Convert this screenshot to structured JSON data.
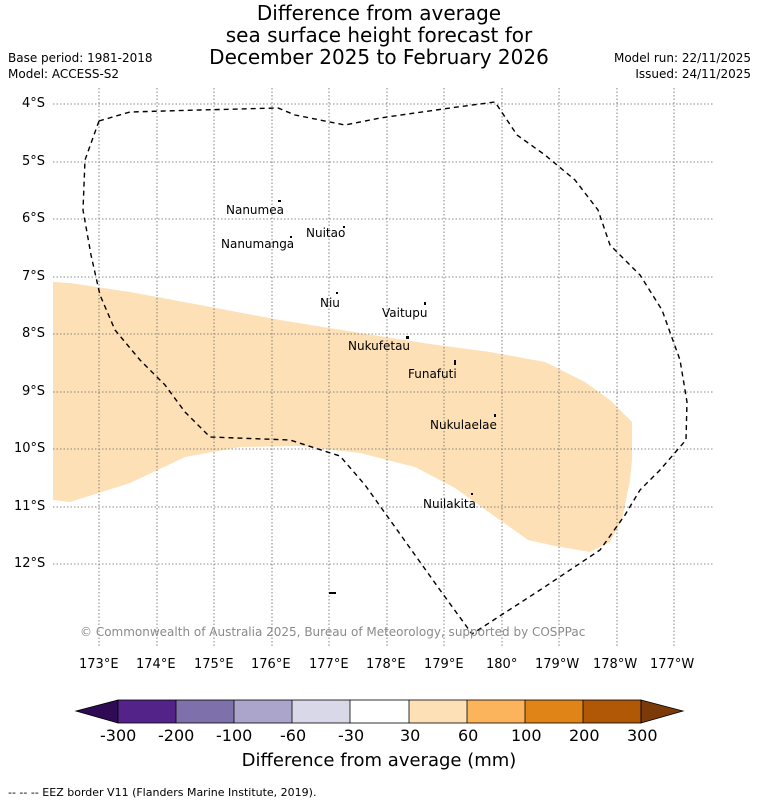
{
  "header": {
    "title_line1": "Difference from average",
    "title_line2": "sea surface height forecast for",
    "title_line3": "December 2025 to February 2026",
    "base_period": "Base period: 1981-2018",
    "model": "Model: ACCESS-S2",
    "model_run": "Model run: 22/11/2025",
    "issued": "Issued: 24/11/2025"
  },
  "map": {
    "lat_labels": [
      "4°S",
      "5°S",
      "6°S",
      "7°S",
      "8°S",
      "9°S",
      "10°S",
      "11°S",
      "12°S"
    ],
    "lon_labels": [
      "173°E",
      "174°E",
      "175°E",
      "176°E",
      "177°E",
      "178°E",
      "179°E",
      "180°",
      "179°W",
      "178°W",
      "177°W"
    ],
    "islands": [
      {
        "name": "Nanumea"
      },
      {
        "name": "Nuitao"
      },
      {
        "name": "Nanumanga"
      },
      {
        "name": "Niu"
      },
      {
        "name": "Vaitupu"
      },
      {
        "name": "Nukufetau"
      },
      {
        "name": "Funafuti"
      },
      {
        "name": "Nukulaelae"
      },
      {
        "name": "Nuilakita"
      }
    ],
    "copyright": "© Commonwealth of Australia 2025, Bureau of Meteorology, supported by COSPPac",
    "anomaly_fill_color": "#fde0b6",
    "anomaly_category": "30 to 60 mm"
  },
  "colorbar": {
    "ticks": [
      "-300",
      "-200",
      "-100",
      "-60",
      "-30",
      "30",
      "60",
      "100",
      "200",
      "300"
    ],
    "colors": [
      "#2e0b54",
      "#54238a",
      "#7e71ab",
      "#aba5cc",
      "#d8d8e9",
      "#ffffff",
      "#fde0b6",
      "#fcb45c",
      "#e18418",
      "#b15806",
      "#7c3a08"
    ],
    "label": "Difference from average (mm)"
  },
  "footer": {
    "eez_note": "--  --  -- EEZ border V11 (Flanders Marine Institute, 2019)."
  }
}
